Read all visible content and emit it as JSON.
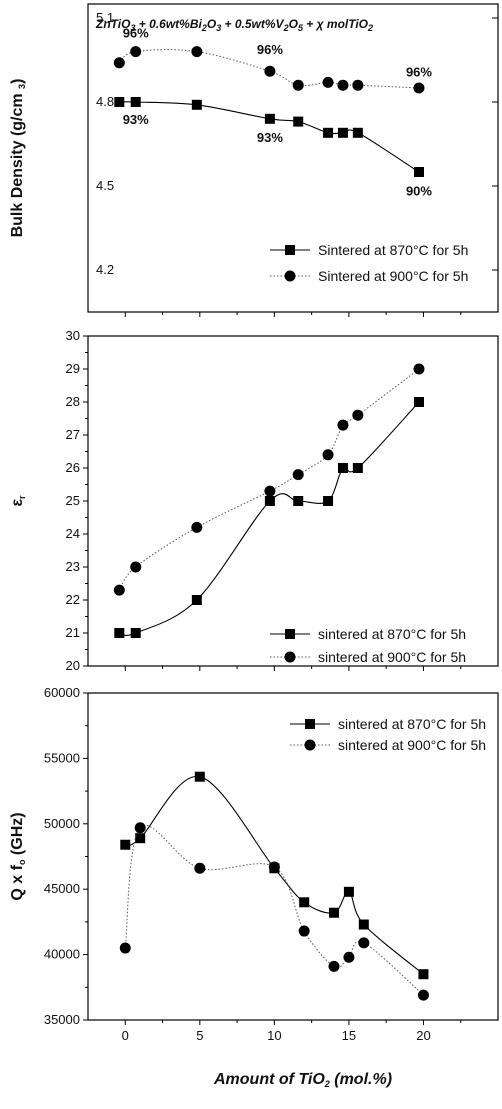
{
  "chart_data": [
    {
      "type": "line",
      "title": "ZnTiO3 + 0.6wt%Bi2O3 + 0.5wt%V2O5 + χ molTiO2",
      "ylabel": "Bulk Density (g/cm 3)",
      "ylim": [
        4.05,
        5.15
      ],
      "yticks": [
        "4.2",
        "4.5",
        "4.8",
        "5.1"
      ],
      "xlim": [
        -2.5,
        25
      ],
      "series": [
        {
          "name": "Sintered at 870°C for 5h",
          "marker": "square",
          "x": [
            -0.4,
            0.7,
            4.8,
            9.7,
            11.6,
            13.6,
            14.6,
            15.6,
            19.7
          ],
          "y": [
            4.8,
            4.8,
            4.79,
            4.74,
            4.73,
            4.69,
            4.69,
            4.69,
            4.55
          ]
        },
        {
          "name": "Sintered at 900°C for 5h",
          "marker": "circle",
          "x": [
            -0.4,
            0.7,
            4.8,
            9.7,
            11.6,
            13.6,
            14.6,
            15.6,
            19.7
          ],
          "y": [
            4.94,
            4.98,
            4.98,
            4.91,
            4.86,
            4.87,
            4.86,
            4.86,
            4.85
          ]
        }
      ],
      "annotations": [
        {
          "text": "96%",
          "x": 0.7,
          "y": 5.045
        },
        {
          "text": "93%",
          "x": 0.7,
          "y": 4.735
        },
        {
          "text": "96%",
          "x": 9.7,
          "y": 4.985
        },
        {
          "text": "93%",
          "x": 9.7,
          "y": 4.672
        },
        {
          "text": "96%",
          "x": 19.7,
          "y": 4.905
        },
        {
          "text": "90%",
          "x": 19.7,
          "y": 4.48
        }
      ],
      "legend_position": "bottom-right"
    },
    {
      "type": "line",
      "title": "",
      "ylabel": "εr",
      "ylim": [
        20,
        30
      ],
      "yticks": [
        "20",
        "21",
        "22",
        "23",
        "24",
        "25",
        "26",
        "27",
        "28",
        "29",
        "30"
      ],
      "xlim": [
        -2.5,
        25
      ],
      "series": [
        {
          "name": "sintered at 870°C for 5h",
          "marker": "square",
          "x": [
            -0.4,
            0.7,
            4.8,
            9.7,
            11.6,
            13.6,
            14.6,
            15.6,
            19.7
          ],
          "y": [
            21.0,
            21.0,
            22.0,
            25.0,
            25.0,
            25.0,
            26.0,
            26.0,
            28.0
          ]
        },
        {
          "name": "sintered at 900°C for 5h",
          "marker": "circle",
          "x": [
            -0.4,
            0.7,
            4.8,
            9.7,
            11.6,
            13.6,
            14.6,
            15.6,
            19.7
          ],
          "y": [
            22.3,
            23.0,
            24.2,
            25.3,
            25.8,
            26.4,
            27.3,
            27.6,
            29.0
          ]
        }
      ],
      "legend_position": "bottom-right"
    },
    {
      "type": "line",
      "title": "",
      "ylabel": "Q x f o (GHz)",
      "xlabel": "Amount of TiO2 (mol.%)",
      "ylim": [
        35000,
        60000
      ],
      "yticks": [
        "35000",
        "40000",
        "45000",
        "50000",
        "55000",
        "60000"
      ],
      "xlim": [
        -2.5,
        25
      ],
      "xticks": [
        "0",
        "5",
        "10",
        "15",
        "20"
      ],
      "series": [
        {
          "name": "sintered at 870°C for 5h",
          "marker": "square",
          "x": [
            0,
            1,
            5,
            10,
            12,
            14,
            15,
            16,
            20
          ],
          "y": [
            48400,
            48900,
            53600,
            46600,
            44000,
            43200,
            44800,
            42300,
            38500
          ]
        },
        {
          "name": "sintered at 900°C for 5h",
          "marker": "circle",
          "x": [
            0,
            1,
            5,
            10,
            12,
            14,
            15,
            16,
            20
          ],
          "y": [
            40500,
            49700,
            46600,
            46700,
            41800,
            39100,
            39800,
            40900,
            36900
          ]
        }
      ],
      "legend_position": "top-right"
    }
  ]
}
